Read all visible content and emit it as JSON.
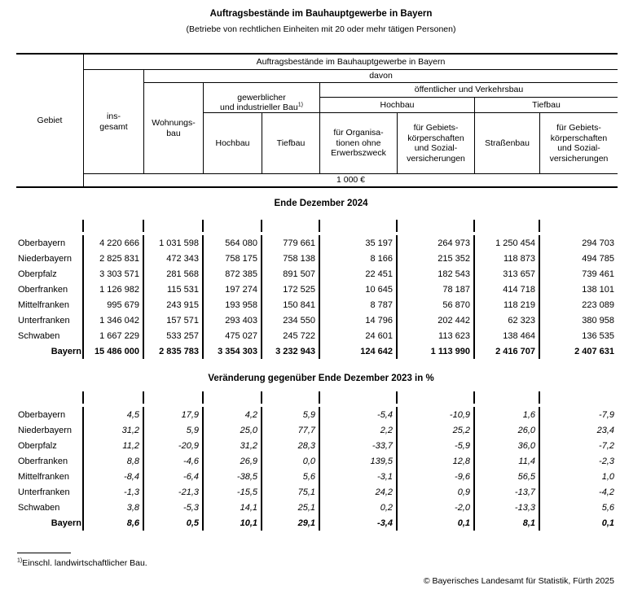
{
  "title": "Auftragsbestände im Bauhauptgewerbe in Bayern",
  "subtitle": "(Betriebe von rechtlichen Einheiten mit 20 oder mehr tätigen Personen)",
  "header": {
    "gebiet": "Gebiet",
    "span_title": "Auftragsbestände im Bauhauptgewerbe in Bayern",
    "davon": "davon",
    "insgesamt": "ins-\ngesamt",
    "wohnungsbau": "Wohnungs-\nbau",
    "gew_ind_bau": "gewerblicher\nund industrieller Bau",
    "gew_ind_bau_sup": "1)",
    "oeff_verkehrsbau": "öffentlicher und Verkehrsbau",
    "hochbau_gew": "Hochbau",
    "tiefbau_gew": "Tiefbau",
    "hochbau_oeff": "Hochbau",
    "tiefbau_oeff": "Tiefbau",
    "fuer_orga": "für Organisa-\ntionen ohne\nErwerbszweck",
    "fuer_gebiets_hochbau": "für Gebiets-\nkörperschaften\nund Sozial-\nversicherungen",
    "strassenbau": "Straßenbau",
    "fuer_gebiets_tiefbau": "für Gebiets-\nkörperschaften\nund Sozial-\nversicherungen",
    "unit": "1 000 €"
  },
  "sections": [
    {
      "title": "Ende Dezember 2024",
      "rows": [
        {
          "name": "Oberbayern",
          "values": [
            "4 220 666",
            "1 031 598",
            "564 080",
            "779 661",
            "35 197",
            "264 973",
            "1 250 454",
            "294 703"
          ]
        },
        {
          "name": "Niederbayern",
          "values": [
            "2 825 831",
            "472 343",
            "758 175",
            "758 138",
            "8 166",
            "215 352",
            "118 873",
            "494 785"
          ]
        },
        {
          "name": "Oberpfalz",
          "values": [
            "3 303 571",
            "281 568",
            "872 385",
            "891 507",
            "22 451",
            "182 543",
            "313 657",
            "739 461"
          ]
        },
        {
          "name": "Oberfranken",
          "values": [
            "1 126 982",
            "115 531",
            "197 274",
            "172 525",
            "10 645",
            "78 187",
            "414 718",
            "138 101"
          ]
        },
        {
          "name": "Mittelfranken",
          "values": [
            "995 679",
            "243 915",
            "193 958",
            "150 841",
            "8 787",
            "56 870",
            "118 219",
            "223 089"
          ]
        },
        {
          "name": "Unterfranken",
          "values": [
            "1 346 042",
            "157 571",
            "293 403",
            "234 550",
            "14 796",
            "202 442",
            "62 323",
            "380 958"
          ]
        },
        {
          "name": "Schwaben",
          "values": [
            "1 667 229",
            "533 257",
            "475 027",
            "245 722",
            "24 601",
            "113 623",
            "138 464",
            "136 535"
          ]
        }
      ],
      "total": {
        "name": "Bayern",
        "values": [
          "15 486 000",
          "2 835 783",
          "3 354 303",
          "3 232 943",
          "124 642",
          "1 113 990",
          "2 416 707",
          "2 407 631"
        ]
      }
    },
    {
      "title": "Veränderung gegenüber Ende Dezember 2023 in %",
      "rows": [
        {
          "name": "Oberbayern",
          "values": [
            "4,5",
            "17,9",
            "4,2",
            "5,9",
            "-5,4",
            "-10,9",
            "1,6",
            "-7,9"
          ]
        },
        {
          "name": "Niederbayern",
          "values": [
            "31,2",
            "5,9",
            "25,0",
            "77,7",
            "2,2",
            "25,2",
            "26,0",
            "23,4"
          ]
        },
        {
          "name": "Oberpfalz",
          "values": [
            "11,2",
            "-20,9",
            "31,2",
            "28,3",
            "-33,7",
            "-5,9",
            "36,0",
            "-7,2"
          ]
        },
        {
          "name": "Oberfranken",
          "values": [
            "8,8",
            "-4,6",
            "26,9",
            "0,0",
            "139,5",
            "12,8",
            "11,4",
            "-2,3"
          ]
        },
        {
          "name": "Mittelfranken",
          "values": [
            "-8,4",
            "-6,4",
            "-38,5",
            "5,6",
            "-3,1",
            "-9,6",
            "56,5",
            "1,0"
          ]
        },
        {
          "name": "Unterfranken",
          "values": [
            "-1,3",
            "-21,3",
            "-15,5",
            "75,1",
            "24,2",
            "0,9",
            "-13,7",
            "-4,2"
          ]
        },
        {
          "name": "Schwaben",
          "values": [
            "3,8",
            "-5,3",
            "14,1",
            "25,1",
            "0,2",
            "-2,0",
            "-13,3",
            "5,6"
          ]
        }
      ],
      "total": {
        "name": "Bayern",
        "values": [
          "8,6",
          "0,5",
          "10,1",
          "29,1",
          "-3,4",
          "0,1",
          "8,1",
          "0,1"
        ]
      }
    }
  ],
  "footnote": {
    "sup": "1)",
    "text": "Einschl. landwirtschaftlicher Bau."
  },
  "copyright": "© Bayerisches Landesamt für Statistik, Fürth 2025"
}
